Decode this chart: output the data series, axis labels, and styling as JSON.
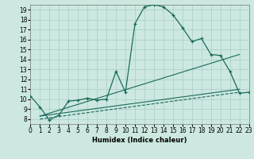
{
  "xlabel": "Humidex (Indice chaleur)",
  "ylabel": "",
  "background_color": "#cce8e0",
  "grid_color": "#aacccc",
  "line_color": "#1a6b5a",
  "xlim": [
    0,
    23
  ],
  "ylim": [
    7.5,
    19.5
  ],
  "xticks": [
    0,
    1,
    2,
    3,
    4,
    5,
    6,
    7,
    8,
    9,
    10,
    11,
    12,
    13,
    14,
    15,
    16,
    17,
    18,
    19,
    20,
    21,
    22,
    23
  ],
  "yticks": [
    8,
    9,
    10,
    11,
    12,
    13,
    14,
    15,
    16,
    17,
    18,
    19
  ],
  "series1_x": [
    0,
    1,
    2,
    3,
    4,
    5,
    6,
    7,
    8,
    9,
    10,
    11,
    12,
    13,
    14,
    15,
    16,
    17,
    18,
    19,
    20,
    21,
    22,
    23
  ],
  "series1_y": [
    10.3,
    9.2,
    7.9,
    8.4,
    9.8,
    9.9,
    10.1,
    9.9,
    10.0,
    12.8,
    10.7,
    17.6,
    19.3,
    19.5,
    19.3,
    18.5,
    17.2,
    15.8,
    16.1,
    14.5,
    14.4,
    12.8,
    10.6,
    10.7
  ],
  "series2_x": [
    1,
    22
  ],
  "series2_y": [
    8.3,
    14.5
  ],
  "series3_x": [
    1,
    22
  ],
  "series3_y": [
    8.3,
    11.0
  ],
  "series4_x": [
    1,
    22
  ],
  "series4_y": [
    8.0,
    10.7
  ]
}
